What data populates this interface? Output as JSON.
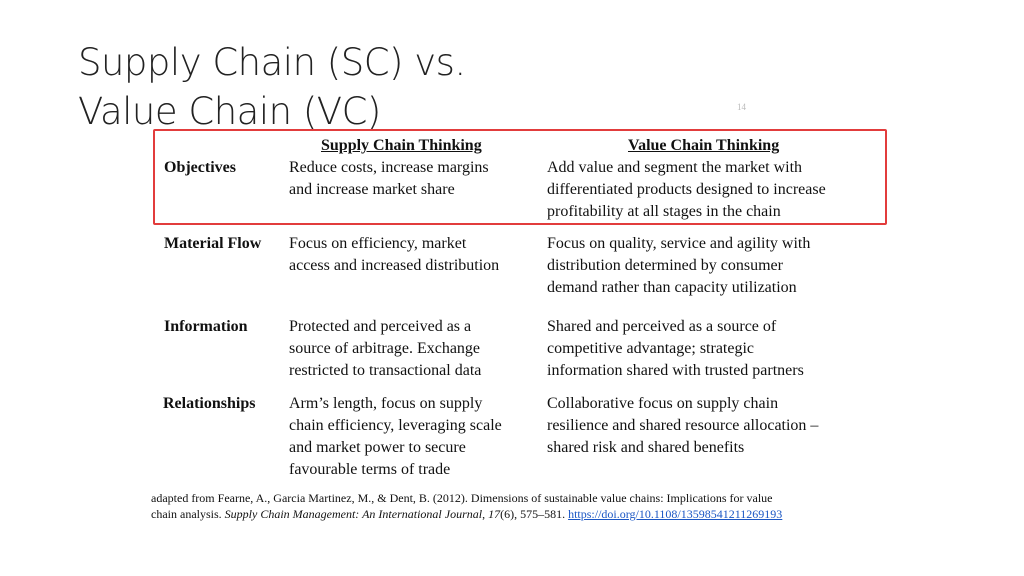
{
  "title": {
    "line1": "Supply Chain (SC) vs.",
    "line2": "Value Chain (VC)"
  },
  "page_number": "14",
  "table": {
    "headers": {
      "supply_chain": "Supply Chain Thinking",
      "value_chain": "Value Chain Thinking"
    },
    "rows": [
      {
        "label": "Objectives",
        "supply_chain": [
          "Reduce costs, increase margins",
          "and increase market share"
        ],
        "value_chain": [
          "Add value and segment the market with",
          "differentiated products designed to increase",
          "profitability at all stages in the chain"
        ]
      },
      {
        "label": "Material Flow",
        "supply_chain": [
          "Focus on efficiency, market",
          "access and increased distribution"
        ],
        "value_chain": [
          "Focus on quality, service and agility with",
          "distribution determined by consumer",
          "demand rather than capacity utilization"
        ]
      },
      {
        "label": "Information",
        "supply_chain": [
          "Protected and perceived as a",
          "source of arbitrage. Exchange",
          "restricted to transactional data"
        ],
        "value_chain": [
          "Shared and perceived as a source of",
          "competitive advantage; strategic",
          "information shared with trusted partners"
        ]
      },
      {
        "label": "Relationships",
        "supply_chain": [
          "Arm’s length, focus on supply",
          "chain efficiency, leveraging scale",
          "and market power to  secure",
          "favourable terms of trade"
        ],
        "value_chain": [
          "Collaborative focus on supply chain",
          "resilience and shared resource allocation –",
          "shared risk and shared benefits"
        ]
      }
    ]
  },
  "citation": {
    "line1": "adapted from Fearne, A., Garcia Martinez, M., & Dent, B. (2012). Dimensions of sustainable value chains: Implications for value",
    "prefix": "chain analysis. ",
    "journal": "Supply Chain Management: An International Journal",
    "sep": ", ",
    "volume": "17",
    "issue_pages": "(6), 575–581. ",
    "doi": "https://doi.org/10.1108/13598541211269193"
  },
  "colors": {
    "highlight_border": "#e23c3c",
    "link": "#1a56c4"
  }
}
